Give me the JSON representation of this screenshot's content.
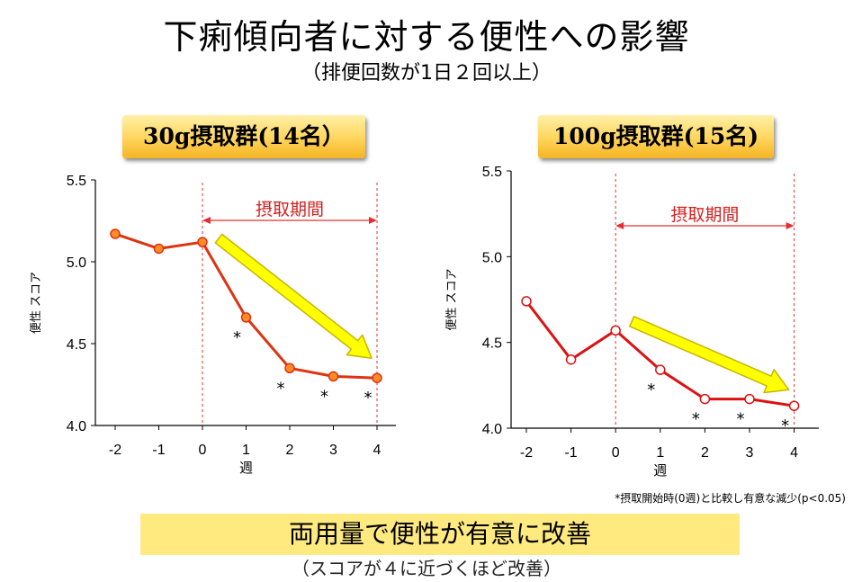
{
  "title": "下痢傾向者に対する便性への影響",
  "subtitle": "（排便回数が1日２回以上）",
  "chart_data": [
    {
      "type": "line",
      "group_label": "30g摂取群(14名）",
      "x": [
        -2,
        -1,
        0,
        1,
        2,
        3,
        4
      ],
      "xticks": [
        "-2",
        "-1",
        "0",
        "1",
        "2",
        "3",
        "4"
      ],
      "xlabel": "週",
      "ylabel": "便性 スコア",
      "ylim": [
        4.0,
        5.5
      ],
      "yticks": [
        "4.0",
        "4.5",
        "5.0",
        "5.5"
      ],
      "series": [
        {
          "values": [
            5.17,
            5.08,
            5.12,
            4.66,
            4.35,
            4.3,
            4.29
          ],
          "marker": "filled",
          "color": "#dd3311",
          "marker_fill": "#ff8c26"
        }
      ],
      "significant": [
        false,
        false,
        false,
        true,
        true,
        true,
        true
      ],
      "asterisk": "*",
      "period_label": "摂取期間",
      "period_range": [
        0,
        4
      ]
    },
    {
      "type": "line",
      "group_label": "100g摂取群(15名)",
      "x": [
        -2,
        -1,
        0,
        1,
        2,
        3,
        4
      ],
      "xticks": [
        "-2",
        "-1",
        "0",
        "1",
        "2",
        "3",
        "4"
      ],
      "xlabel": "週",
      "ylabel": "便性 スコア",
      "ylim": [
        4.0,
        5.5
      ],
      "yticks": [
        "4.0",
        "4.5",
        "5.0",
        "5.5"
      ],
      "series": [
        {
          "values": [
            4.74,
            4.4,
            4.57,
            4.34,
            4.17,
            4.17,
            4.13
          ],
          "marker": "hollow",
          "color": "#dd1111",
          "marker_fill": "#ffffff"
        }
      ],
      "significant": [
        false,
        false,
        false,
        true,
        true,
        true,
        true
      ],
      "asterisk": "*",
      "period_label": "摂取期間",
      "period_range": [
        0,
        4
      ]
    }
  ],
  "footnote": "*摂取開始時(0週)と比較し有意な減少(p<0.05)",
  "conclusion": "両用量で便性が有意に改善",
  "conclusion_note": "（スコアが４に近づくほど改善）",
  "colors": {
    "period_line": "#e53030",
    "arrow_fill": "#ffff00",
    "arrow_stroke": "#c8b400",
    "label_gradient_top": "#fff1a8",
    "label_gradient_bottom": "#f5b423",
    "conclusion_bg": "#ffea80"
  }
}
